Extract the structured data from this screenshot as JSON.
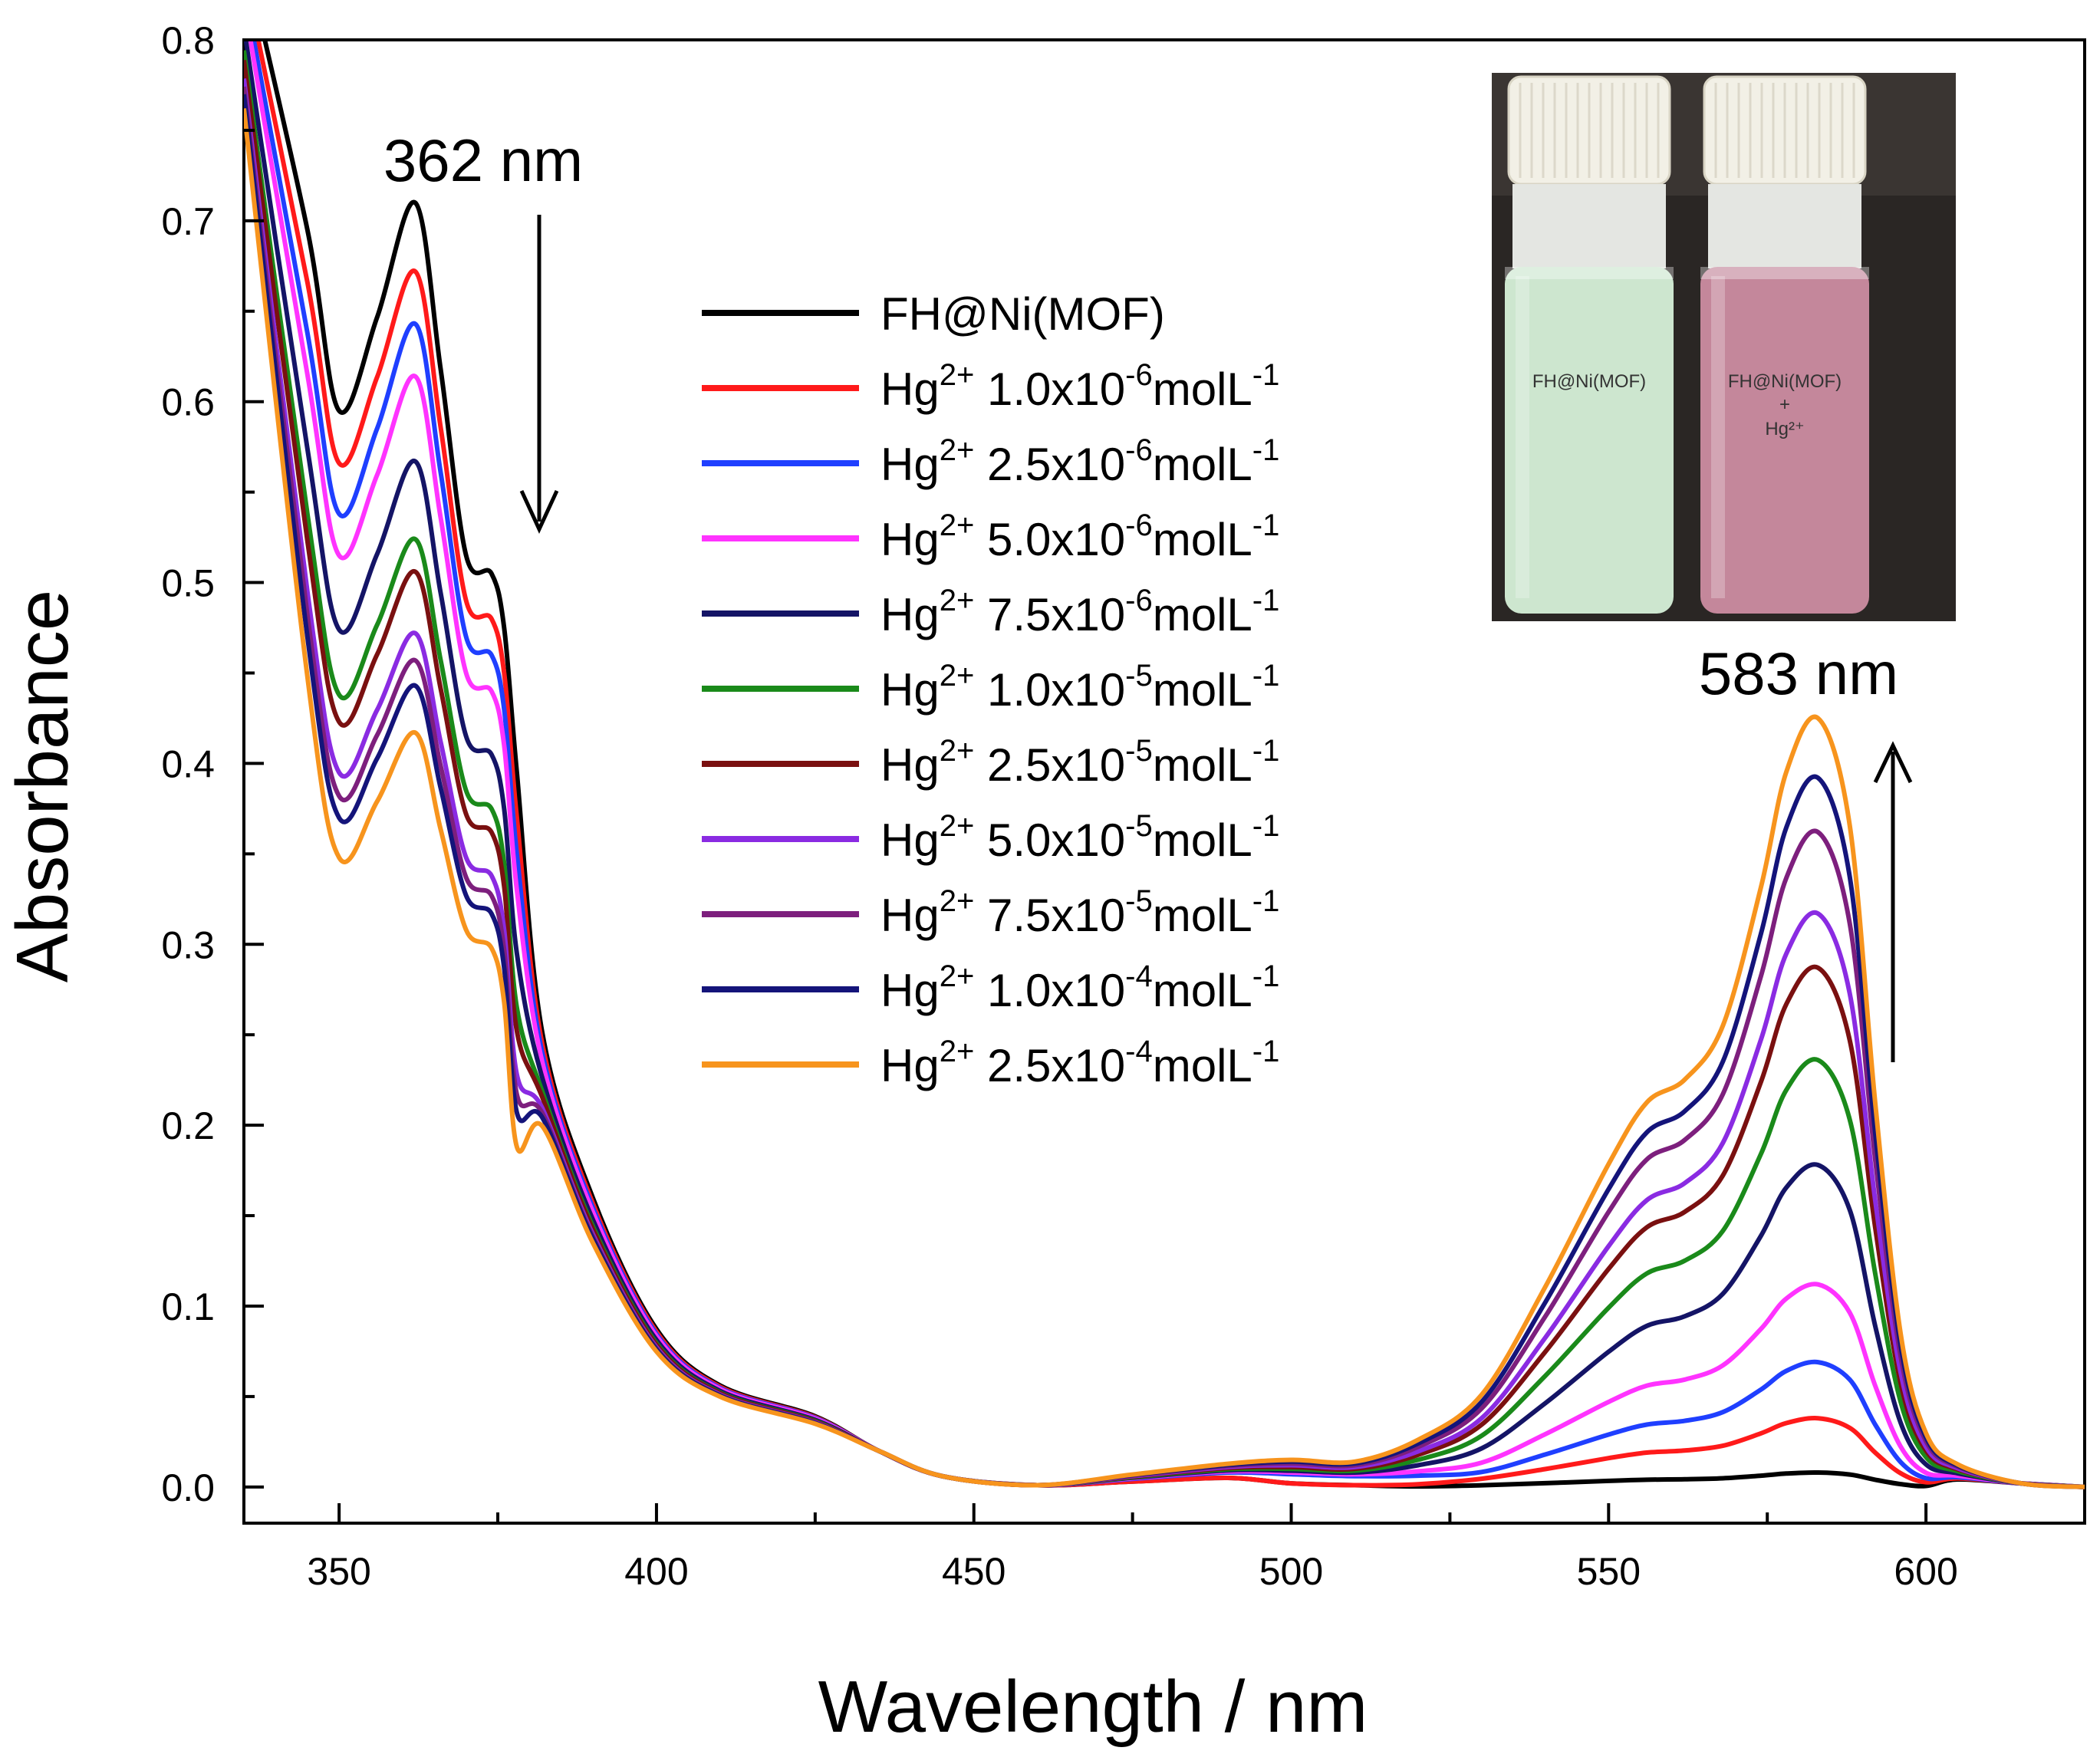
{
  "chart_data": {
    "type": "line",
    "title": "",
    "xlabel": "Wavelength / nm",
    "ylabel": "Absorbance",
    "xlim": [
      335,
      625
    ],
    "ylim": [
      -0.02,
      0.8
    ],
    "x_ticks": [
      350,
      400,
      450,
      500,
      550,
      600
    ],
    "y_ticks": [
      0.0,
      0.1,
      0.2,
      0.3,
      0.4,
      0.5,
      0.6,
      0.7,
      0.8
    ],
    "x_tick_labels": [
      "350",
      "400",
      "450",
      "500",
      "550",
      "600"
    ],
    "y_tick_labels": [
      "0.0",
      "0.1",
      "0.2",
      "0.3",
      "0.4",
      "0.5",
      "0.6",
      "0.7",
      "0.8"
    ],
    "grid": false,
    "legend_position": "top-center",
    "annotations": [
      {
        "text": "362 nm",
        "arrow": "down"
      },
      {
        "text": "583 nm",
        "arrow": "up"
      }
    ],
    "inset_photo": {
      "left_vial_label": "FH@Ni(MOF)",
      "right_vial_label_line1": "FH@Ni(MOF)",
      "right_vial_label_line2": "+",
      "right_vial_label_line3": "Hg²⁺",
      "left_liquid_color": "#cde6cf",
      "right_liquid_color": "#c4879b"
    },
    "shared_shape_x": [
      335,
      345,
      350,
      356,
      362,
      366,
      370,
      374,
      376,
      378,
      382,
      390,
      400,
      410,
      425,
      435,
      445,
      460,
      475,
      490,
      500,
      510,
      520,
      530,
      540,
      550,
      556,
      562,
      568,
      574,
      578,
      583,
      588,
      592,
      596,
      600,
      605,
      615,
      625
    ],
    "series": [
      {
        "name": "FH@Ni(MOF)",
        "legend_prefix": "",
        "legend_rest": "FH@Ni(MOF)",
        "color": "#000000",
        "peak362": 0.71,
        "min350": 0.595,
        "shoulder375": 0.505,
        "peak583": 0.008,
        "tail500": 0.0
      },
      {
        "name": "Hg2+ 1.0x10-6 mol L-1",
        "legend_prefix": "Hg",
        "legend_sup1": "2+",
        "legend_mant": " 1.0x10",
        "legend_exp": "-6",
        "legend_unit": "molL",
        "legend_unit_exp": "-1",
        "color": "#ff1a1a",
        "peak362": 0.672,
        "min350": 0.566,
        "shoulder375": 0.48,
        "peak583": 0.038,
        "tail500": 0.0
      },
      {
        "name": "Hg2+ 2.5x10-6 mol L-1",
        "legend_prefix": "Hg",
        "legend_sup1": "2+",
        "legend_mant": " 2.5x10",
        "legend_exp": "-6",
        "legend_unit": "molL",
        "legend_unit_exp": "-1",
        "color": "#1f3fff",
        "peak362": 0.643,
        "min350": 0.538,
        "shoulder375": 0.46,
        "peak583": 0.069,
        "tail500": 0.005
      },
      {
        "name": "Hg2+ 5.0x10-6 mol L-1",
        "legend_prefix": "Hg",
        "legend_sup1": "2+",
        "legend_mant": " 5.0x10",
        "legend_exp": "-6",
        "legend_unit": "molL",
        "legend_unit_exp": "-1",
        "color": "#ff33ff",
        "peak362": 0.614,
        "min350": 0.515,
        "shoulder375": 0.44,
        "peak583": 0.112,
        "tail500": 0.006
      },
      {
        "name": "Hg2+ 7.5x10-6 mol L-1",
        "legend_prefix": "Hg",
        "legend_sup1": "2+",
        "legend_mant": " 7.5x10",
        "legend_exp": "-6",
        "legend_unit": "molL",
        "legend_unit_exp": "-1",
        "color": "#141466",
        "peak362": 0.567,
        "min350": 0.474,
        "shoulder375": 0.405,
        "peak583": 0.178,
        "tail500": 0.007
      },
      {
        "name": "Hg2+ 1.0x10-5 mol L-1",
        "legend_prefix": "Hg",
        "legend_sup1": "2+",
        "legend_mant": " 1.0x10",
        "legend_exp": "-5",
        "legend_unit": "molL",
        "legend_unit_exp": "-1",
        "color": "#1a8a1a",
        "peak362": 0.524,
        "min350": 0.438,
        "shoulder375": 0.375,
        "peak583": 0.236,
        "tail500": 0.008
      },
      {
        "name": "Hg2+ 2.5x10-5 mol L-1",
        "legend_prefix": "Hg",
        "legend_sup1": "2+",
        "legend_mant": " 2.5x10",
        "legend_exp": "-5",
        "legend_unit": "molL",
        "legend_unit_exp": "-1",
        "color": "#7a1010",
        "peak362": 0.506,
        "min350": 0.423,
        "shoulder375": 0.362,
        "peak583": 0.287,
        "tail500": 0.009
      },
      {
        "name": "Hg2+ 5.0x10-5 mol L-1",
        "legend_prefix": "Hg",
        "legend_sup1": "2+",
        "legend_mant": " 5.0x10",
        "legend_exp": "-5",
        "legend_unit": "molL",
        "legend_unit_exp": "-1",
        "color": "#8a2be2",
        "peak362": 0.472,
        "min350": 0.395,
        "shoulder375": 0.338,
        "peak583": 0.317,
        "tail500": 0.01
      },
      {
        "name": "Hg2+ 7.5x10-5 mol L-1",
        "legend_prefix": "Hg",
        "legend_sup1": "2+",
        "legend_mant": " 7.5x10",
        "legend_exp": "-5",
        "legend_unit": "molL",
        "legend_unit_exp": "-1",
        "color": "#7d1f7d",
        "peak362": 0.457,
        "min350": 0.382,
        "shoulder375": 0.327,
        "peak583": 0.362,
        "tail500": 0.011
      },
      {
        "name": "Hg2+ 1.0x10-4 mol L-1",
        "legend_prefix": "Hg",
        "legend_sup1": "2+",
        "legend_mant": " 1.0x10",
        "legend_exp": "-4",
        "legend_unit": "molL",
        "legend_unit_exp": "-1",
        "color": "#14147a",
        "peak362": 0.443,
        "min350": 0.37,
        "shoulder375": 0.317,
        "peak583": 0.392,
        "tail500": 0.012
      },
      {
        "name": "Hg2+ 2.5x10-4 mol L-1",
        "legend_prefix": "Hg",
        "legend_sup1": "2+",
        "legend_mant": " 2.5x10",
        "legend_exp": "-4",
        "legend_unit": "molL",
        "legend_unit_exp": "-1",
        "color": "#f7941d",
        "peak362": 0.417,
        "min350": 0.348,
        "shoulder375": 0.298,
        "peak583": 0.425,
        "tail500": 0.013
      }
    ]
  }
}
